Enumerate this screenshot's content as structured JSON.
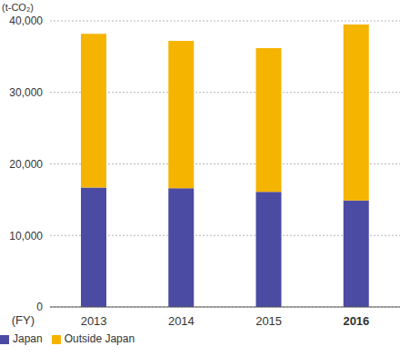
{
  "chart_data": {
    "type": "bar",
    "stacked": true,
    "x_label": "(FY)",
    "y_label": "(t-CO₂)",
    "categories": [
      "2013",
      "2014",
      "2015",
      "2016"
    ],
    "series": [
      {
        "name": "Japan",
        "color": "#4b4ba3",
        "values": [
          16700,
          16600,
          16100,
          14900
        ]
      },
      {
        "name": "Outside Japan",
        "color": "#f5b400",
        "values": [
          21500,
          20600,
          20100,
          24600
        ]
      }
    ],
    "ylim": [
      0,
      40000
    ],
    "yticks": [
      0,
      {
        "value": 10000,
        "label": "10,000"
      },
      {
        "value": 20000,
        "label": "20,000"
      },
      {
        "value": 30000,
        "label": "30,000"
      },
      {
        "value": 40000,
        "label": "40,000"
      }
    ],
    "grid": true,
    "legend": "bottom left"
  }
}
